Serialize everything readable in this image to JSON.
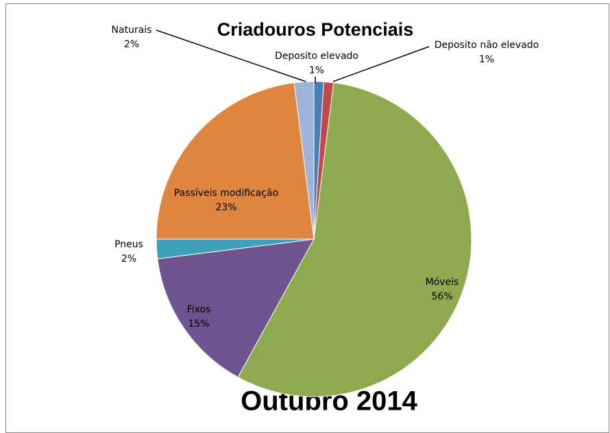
{
  "chart_data": {
    "type": "pie",
    "title": "Criadouros Potenciais",
    "subtitle": "Outubro 2014",
    "categories": [
      "Deposito elevado",
      "Deposito não elevado",
      "Móveis",
      "Fixos",
      "Pneus",
      "Passíveis modificação",
      "Naturais"
    ],
    "values": [
      1,
      1,
      56,
      15,
      2,
      23,
      2
    ],
    "value_labels": [
      "1%",
      "1%",
      "56%",
      "15%",
      "2%",
      "23%",
      "2%"
    ],
    "colors": [
      "#4a7ebb",
      "#be4b48",
      "#8ea94e",
      "#6f5590",
      "#3fa1b9",
      "#de853f",
      "#9eb3d8"
    ]
  }
}
